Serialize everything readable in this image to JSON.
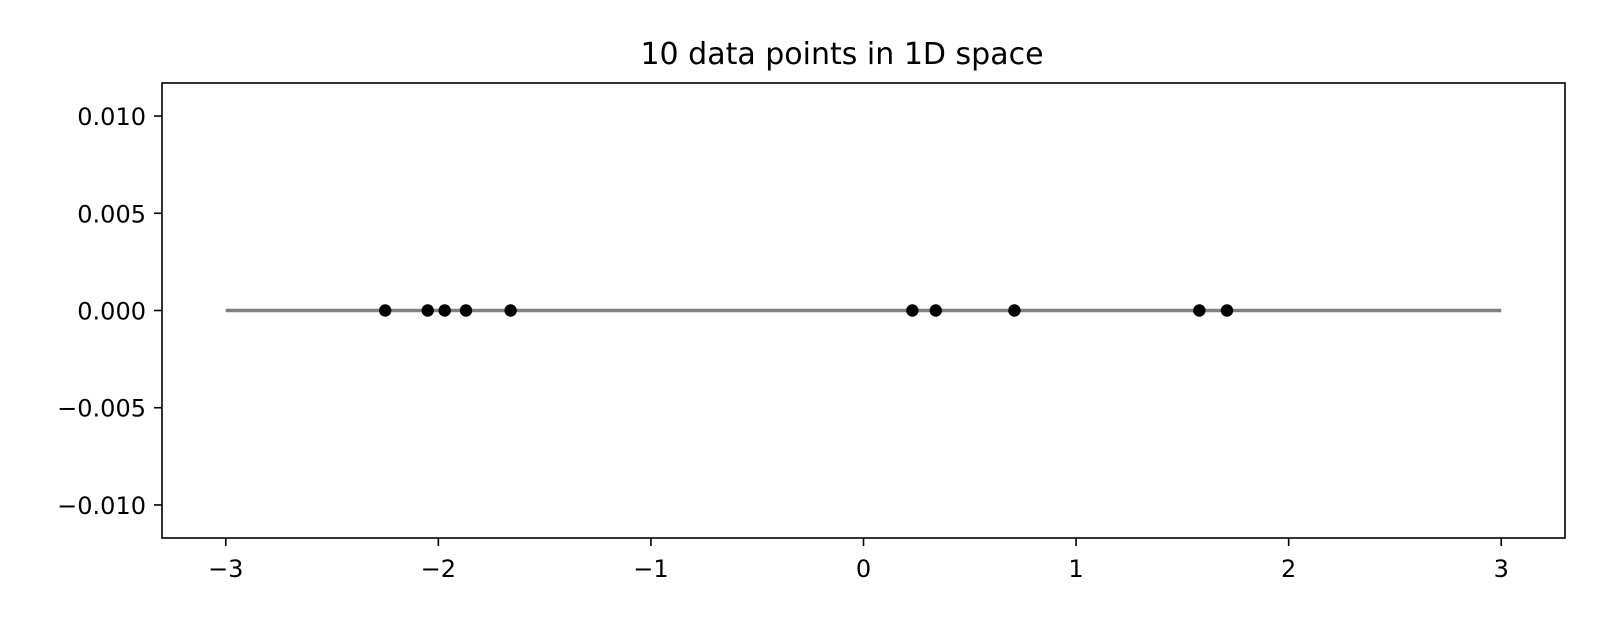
{
  "chart_data": {
    "type": "scatter",
    "title": "10 data points in 1D space",
    "xlabel": "",
    "ylabel": "",
    "xlim": [
      -3.3,
      3.3
    ],
    "ylim": [
      -0.0117,
      0.0117
    ],
    "x_ticks": [
      -3,
      -2,
      -1,
      0,
      1,
      2,
      3
    ],
    "x_tick_labels": [
      "−3",
      "−2",
      "−1",
      "0",
      "1",
      "2",
      "3"
    ],
    "y_ticks": [
      0.01,
      0.005,
      0.0,
      -0.005,
      -0.01
    ],
    "y_tick_labels": [
      "0.010",
      "0.005",
      "0.000",
      "−0.005",
      "−0.010"
    ],
    "grid": false,
    "reference_line": {
      "x": [
        -3,
        3
      ],
      "y": 0,
      "color": "#808080"
    },
    "series": [
      {
        "color": "#000000",
        "x": [
          -2.25,
          -2.05,
          -1.97,
          -1.87,
          -1.66,
          0.23,
          0.34,
          0.71,
          1.58,
          1.71
        ],
        "y": [
          0,
          0,
          0,
          0,
          0,
          0,
          0,
          0,
          0,
          0
        ]
      }
    ]
  }
}
